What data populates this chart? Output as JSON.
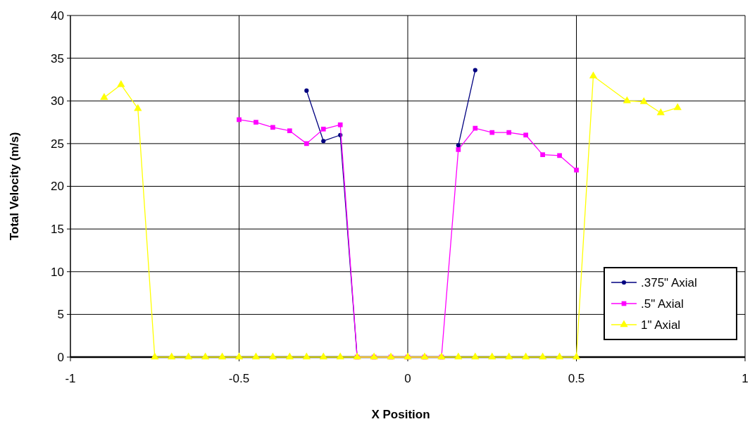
{
  "chart_data": {
    "type": "line",
    "xlabel": "X Position",
    "ylabel": "Total Velocity (m/s)",
    "xlim": [
      -1,
      1
    ],
    "xticks": [
      -1,
      -0.5,
      0,
      0.5,
      1
    ],
    "ylim": [
      0,
      40
    ],
    "yticks": [
      0,
      5,
      10,
      15,
      20,
      25,
      30,
      35,
      40
    ],
    "grid": true,
    "legend": "bottom right",
    "series": [
      {
        "name": ".375\" Axial",
        "color": "#000080",
        "marker": "circle",
        "x": [
          -0.3,
          -0.25,
          -0.2,
          -0.15,
          -0.1,
          -0.05,
          0,
          0.05,
          0.1,
          0.15,
          0.2
        ],
        "values": [
          31.2,
          25.3,
          26,
          0,
          null,
          null,
          null,
          null,
          null,
          24.8,
          33.6
        ]
      },
      {
        "name": ".5\" Axial",
        "color": "#ff00ff",
        "marker": "square",
        "x": [
          -0.5,
          -0.45,
          -0.4,
          -0.35,
          -0.3,
          -0.25,
          -0.2,
          -0.15,
          -0.1,
          -0.05,
          0,
          0.05,
          0.1,
          0.15,
          0.2,
          0.25,
          0.3,
          0.35,
          0.4,
          0.45,
          0.5
        ],
        "values": [
          27.8,
          27.5,
          26.9,
          26.5,
          25,
          26.7,
          27.2,
          0,
          0,
          0,
          0,
          0,
          0,
          24.3,
          26.8,
          26.3,
          26.3,
          26,
          23.7,
          23.6,
          21.9
        ]
      },
      {
        "name": "1\" Axial",
        "color": "#ffff00",
        "marker": "triangle",
        "x": [
          -0.9,
          -0.85,
          -0.8,
          -0.75,
          -0.7,
          -0.65,
          -0.6,
          -0.55,
          -0.5,
          -0.45,
          -0.4,
          -0.35,
          -0.3,
          -0.25,
          -0.2,
          -0.15,
          -0.1,
          -0.05,
          0,
          0.05,
          0.1,
          0.15,
          0.2,
          0.25,
          0.3,
          0.35,
          0.4,
          0.45,
          0.5,
          0.55,
          0.65,
          0.7,
          0.75,
          0.8
        ],
        "values": [
          30.4,
          31.9,
          29.1,
          0,
          0,
          0,
          0,
          0,
          0,
          0,
          0,
          0,
          0,
          0,
          0,
          0,
          0,
          0,
          0,
          0,
          0,
          0,
          0,
          0,
          0,
          0,
          0,
          0,
          0,
          32.9,
          30,
          29.9,
          28.6,
          29.2
        ]
      }
    ]
  }
}
